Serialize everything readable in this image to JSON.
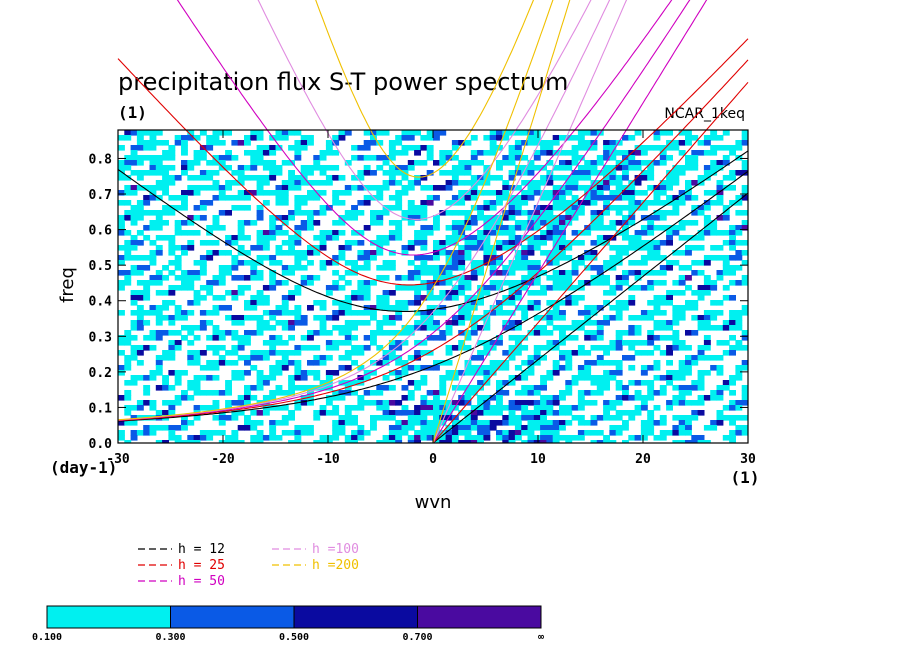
{
  "chart_data": {
    "type": "contour",
    "title": "precipitation flux S-T power spectrum",
    "field_unit": "(1)",
    "model_label": "NCAR_1keq",
    "xlabel": "wvn",
    "x_unit": "(1)",
    "ylabel": "freq",
    "y_unit": "(day-1)",
    "xlim": [
      -30,
      30
    ],
    "ylim": [
      0.0,
      0.88
    ],
    "x_ticks": [
      -30,
      -20,
      -10,
      0,
      10,
      20,
      30
    ],
    "x_tick_labels": [
      "-30",
      "-20",
      "-10",
      "0",
      "10",
      "20",
      "30"
    ],
    "y_ticks": [
      0.0,
      0.1,
      0.2,
      0.3,
      0.4,
      0.5,
      0.6,
      0.7,
      0.8
    ],
    "y_tick_labels": [
      "0.0",
      "0.1",
      "0.2",
      "0.3",
      "0.4",
      "0.5",
      "0.6",
      "0.7",
      "0.8"
    ],
    "contour_levels": [
      0.1,
      0.3,
      0.5,
      0.7
    ],
    "colorbar": {
      "labels": [
        "0.100",
        "0.300",
        "0.500",
        "0.700",
        "∞"
      ],
      "colors": [
        "#00f0f0",
        "#0a5ae6",
        "#0a0aa0",
        "#4a0aa0"
      ]
    },
    "dispersion_curves": [
      {
        "label": "h = 12",
        "equivalent_depth": 12,
        "color": "#000000"
      },
      {
        "label": "h = 25",
        "equivalent_depth": 25,
        "color": "#e00000"
      },
      {
        "label": "h = 50",
        "equivalent_depth": 50,
        "color": "#d000c0"
      },
      {
        "label": "h =100",
        "equivalent_depth": 100,
        "color": "#e08ce0"
      },
      {
        "label": "h =200",
        "equivalent_depth": 200,
        "color": "#f0c000"
      }
    ]
  }
}
